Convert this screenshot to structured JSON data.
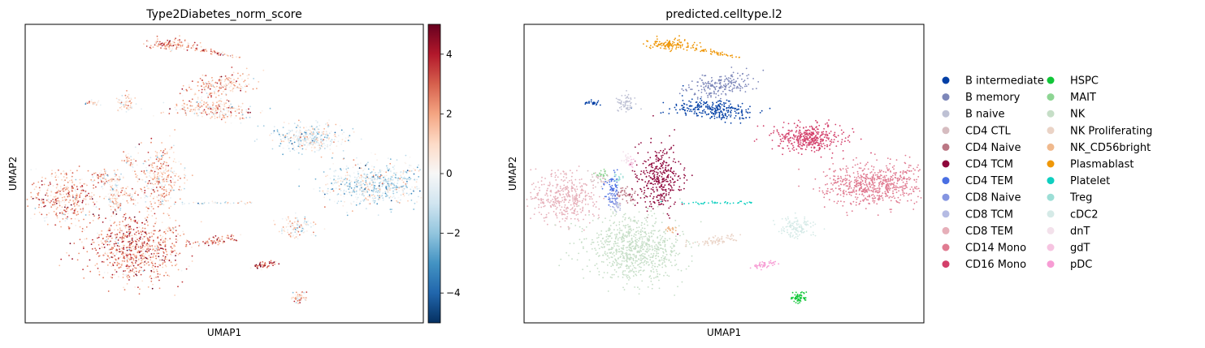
{
  "chart_data": [
    {
      "type": "scatter",
      "title": "Type2Diabetes_norm_score",
      "xlabel": "UMAP1",
      "ylabel": "UMAP2",
      "grid": false,
      "colorbar": {
        "colormap": "RdBu_r",
        "range": [
          -5,
          5
        ],
        "ticks": [
          -4,
          -2,
          0,
          2,
          4
        ],
        "tick_labels": [
          "−4",
          "−2",
          "0",
          "2",
          "4"
        ],
        "colors": [
          "#053061",
          "#2166ac",
          "#4393c3",
          "#92c5de",
          "#d1e5f0",
          "#f7f7f7",
          "#fddbc7",
          "#f4a582",
          "#d6604d",
          "#b2182b",
          "#67001f"
        ]
      },
      "clusters": [
        {
          "name": "B intermediate",
          "score": 1.0
        },
        {
          "name": "B memory",
          "score": 1.5
        },
        {
          "name": "B naive",
          "score": 0.6
        },
        {
          "name": "CD4 CTL",
          "score": 1.6
        },
        {
          "name": "CD4 Naive",
          "score": 1.4
        },
        {
          "name": "CD4 TCM",
          "score": 1.3
        },
        {
          "name": "CD4 TEM",
          "score": 0.8
        },
        {
          "name": "CD8 Naive",
          "score": 0.7
        },
        {
          "name": "CD8 TCM",
          "score": 1.0
        },
        {
          "name": "CD8 TEM",
          "score": 1.8
        },
        {
          "name": "CD14 Mono",
          "score": -0.7
        },
        {
          "name": "CD16 Mono",
          "score": -0.4
        },
        {
          "name": "HSPC",
          "score": 0.9
        },
        {
          "name": "MAIT",
          "score": 0.5
        },
        {
          "name": "NK",
          "score": 2.3
        },
        {
          "name": "NK Proliferating",
          "score": 2.6
        },
        {
          "name": "NK_CD56bright",
          "score": 1.1
        },
        {
          "name": "Plasmablast",
          "score": 2.1
        },
        {
          "name": "Platelet",
          "score": 0.0
        },
        {
          "name": "Treg",
          "score": 0.4
        },
        {
          "name": "cDC2",
          "score": 0.2
        },
        {
          "name": "dnT",
          "score": 0.9
        },
        {
          "name": "gdT",
          "score": 1.1
        },
        {
          "name": "pDC",
          "score": 3.0
        }
      ]
    },
    {
      "type": "scatter",
      "title": "predicted.celltype.l2",
      "xlabel": "UMAP1",
      "ylabel": "UMAP2",
      "grid": false,
      "legend": {
        "placement": "right",
        "columns": 2
      },
      "categories": [
        {
          "name": "B intermediate",
          "color": "#023fa5"
        },
        {
          "name": "B memory",
          "color": "#7d87b9"
        },
        {
          "name": "B naive",
          "color": "#bec1d4"
        },
        {
          "name": "CD4 CTL",
          "color": "#d6bcc0"
        },
        {
          "name": "CD4 Naive",
          "color": "#bb7784"
        },
        {
          "name": "CD4 TCM",
          "color": "#8e063b"
        },
        {
          "name": "CD4 TEM",
          "color": "#4a6fe3"
        },
        {
          "name": "CD8 Naive",
          "color": "#8595e1"
        },
        {
          "name": "CD8 TCM",
          "color": "#b5bbe3"
        },
        {
          "name": "CD8 TEM",
          "color": "#e6afb9"
        },
        {
          "name": "CD14 Mono",
          "color": "#e07b91"
        },
        {
          "name": "CD16 Mono",
          "color": "#d33f6a"
        },
        {
          "name": "HSPC",
          "color": "#11c638"
        },
        {
          "name": "MAIT",
          "color": "#8dd593"
        },
        {
          "name": "NK",
          "color": "#c6dec7"
        },
        {
          "name": "NK Proliferating",
          "color": "#ead3c6"
        },
        {
          "name": "NK_CD56bright",
          "color": "#f0b98d"
        },
        {
          "name": "Plasmablast",
          "color": "#ef9708"
        },
        {
          "name": "Platelet",
          "color": "#0fcfc0"
        },
        {
          "name": "Treg",
          "color": "#9cded6"
        },
        {
          "name": "cDC2",
          "color": "#d5eae7"
        },
        {
          "name": "dnT",
          "color": "#f3e1eb"
        },
        {
          "name": "gdT",
          "color": "#f6c4e1"
        },
        {
          "name": "pDC",
          "color": "#f79cd4"
        }
      ]
    }
  ]
}
